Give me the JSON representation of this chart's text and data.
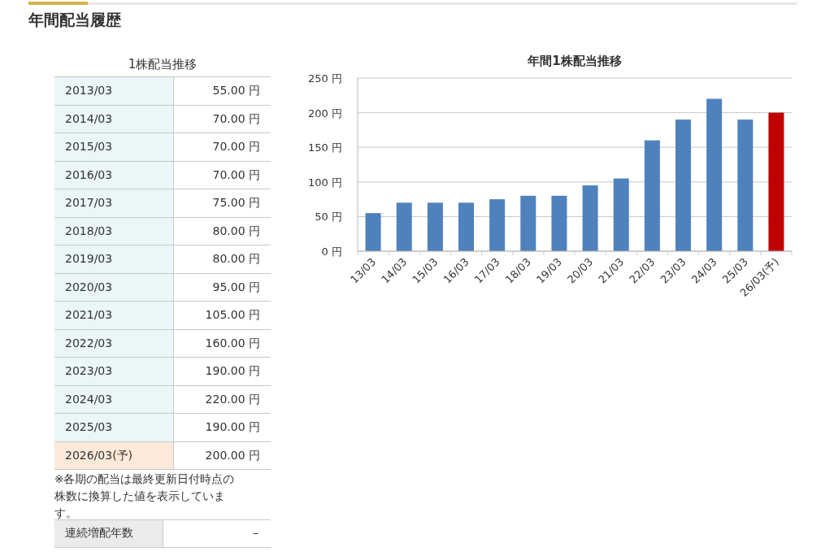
{
  "chart_data": {
    "type": "bar",
    "title": "年間1株配当推移",
    "categories": [
      "13/03",
      "14/03",
      "15/03",
      "16/03",
      "17/03",
      "18/03",
      "19/03",
      "20/03",
      "21/03",
      "22/03",
      "23/03",
      "24/03",
      "25/03",
      "26/03(予)"
    ],
    "values": [
      55,
      70,
      70,
      70,
      75,
      80,
      80,
      95,
      105,
      160,
      190,
      220,
      190,
      200
    ],
    "colors": [
      "#4f81bd",
      "#4f81bd",
      "#4f81bd",
      "#4f81bd",
      "#4f81bd",
      "#4f81bd",
      "#4f81bd",
      "#4f81bd",
      "#4f81bd",
      "#4f81bd",
      "#4f81bd",
      "#4f81bd",
      "#4f81bd",
      "#c00000"
    ],
    "ylim": [
      0,
      250
    ],
    "yticks": [
      {
        "value": 0,
        "label": "0 円"
      },
      {
        "value": 50,
        "label": "50 円"
      },
      {
        "value": 100,
        "label": "100 円"
      },
      {
        "value": 150,
        "label": "150 円"
      },
      {
        "value": 200,
        "label": "200 円"
      },
      {
        "value": 250,
        "label": "250 円"
      }
    ],
    "grid": "y",
    "annotations": [
      "年間配当履歴",
      "1株配当推移",
      "2013/03",
      "2014/03",
      "2015/03",
      "2016/03",
      "2017/03",
      "2018/03",
      "2019/03",
      "2020/03",
      "2021/03",
      "2022/03",
      "2023/03",
      "2024/03",
      "2025/03",
      "2026/03(予)",
      "55.00 円",
      "70.00 円",
      "70.00 円",
      "70.00 円",
      "75.00 円",
      "80.00 円",
      "80.00 円",
      "95.00 円",
      "105.00 円",
      "160.00 円",
      "190.00 円",
      "220.00 円",
      "190.00 円",
      "200.00 円",
      "※各期の配当は最終更新日付時点の株数に換算した値を表示しています。",
      "連続増配年数",
      "–"
    ]
  }
}
